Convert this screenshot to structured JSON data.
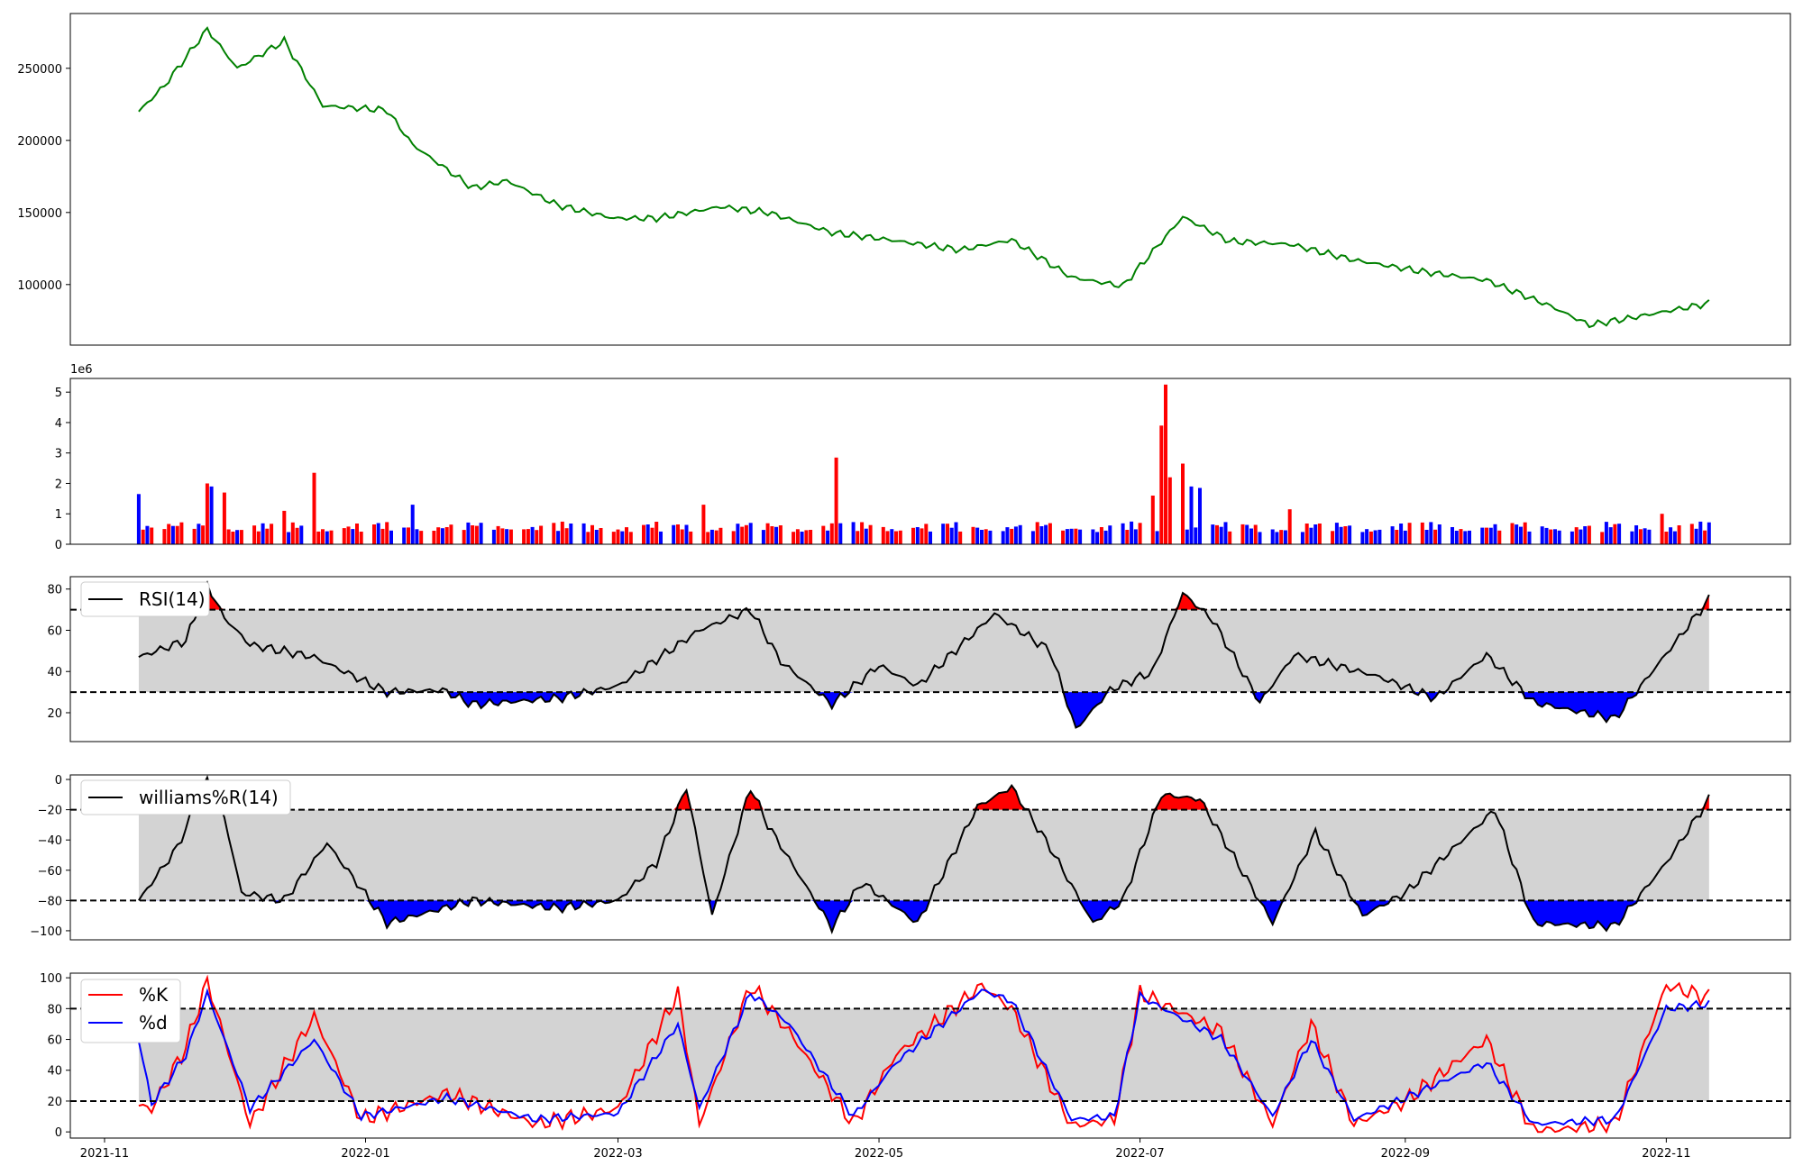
{
  "chart_data": [
    {
      "type": "line",
      "panel": "price",
      "x_dates": [
        "2021-11-09",
        "2021-11-15",
        "2021-11-25",
        "2021-12-02",
        "2021-12-13",
        "2021-12-22",
        "2022-01-06",
        "2022-01-12",
        "2022-01-26",
        "2022-02-03",
        "2022-02-15",
        "2022-02-28",
        "2022-03-10",
        "2022-03-25",
        "2022-04-05",
        "2022-04-20",
        "2022-05-01",
        "2022-05-20",
        "2022-06-01",
        "2022-06-15",
        "2022-06-27",
        "2022-07-11",
        "2022-07-22",
        "2022-08-05",
        "2022-08-20",
        "2022-09-05",
        "2022-09-20",
        "2022-10-05",
        "2022-10-14",
        "2022-10-24",
        "2022-11-11"
      ],
      "values": [
        220000,
        238000,
        277000,
        250000,
        269000,
        224000,
        221000,
        197000,
        167000,
        172000,
        155000,
        146000,
        146000,
        154000,
        150000,
        136000,
        132000,
        124000,
        131000,
        105000,
        99000,
        147000,
        130000,
        128000,
        117000,
        109000,
        103000,
        85000,
        72000,
        77000,
        87000
      ],
      "yticks": [
        100000,
        150000,
        200000,
        250000
      ],
      "ylim": [
        58000,
        288000
      ],
      "color": "#008000"
    },
    {
      "type": "bar",
      "panel": "volume",
      "scale_label": "1e6",
      "x_dates": [
        "2021-11-09",
        "2021-11-11",
        "2021-11-15",
        "2021-11-25",
        "2021-11-26",
        "2021-11-29",
        "2021-12-13",
        "2021-12-20",
        "2022-01-12",
        "2022-02-08",
        "2022-03-21",
        "2022-04-21",
        "2022-06-14",
        "2022-07-04",
        "2022-07-06",
        "2022-07-07",
        "2022-07-08",
        "2022-07-11",
        "2022-07-13",
        "2022-07-15",
        "2022-08-05",
        "2022-10-31"
      ],
      "values": [
        1.65,
        0.6,
        0.5,
        2.0,
        1.9,
        1.7,
        1.1,
        2.35,
        1.3,
        0.5,
        1.3,
        2.85,
        0.5,
        1.6,
        3.9,
        5.25,
        2.2,
        2.65,
        1.9,
        1.85,
        1.15,
        1.0
      ],
      "colors": [
        "blue",
        "blue",
        "red",
        "red",
        "blue",
        "red",
        "red",
        "red",
        "blue",
        "red",
        "red",
        "red",
        "blue",
        "red",
        "red",
        "red",
        "red",
        "red",
        "blue",
        "blue",
        "red",
        "red"
      ],
      "yticks": [
        0,
        1,
        2,
        3,
        4,
        5
      ],
      "ylim": [
        0,
        5.45
      ]
    },
    {
      "type": "line",
      "panel": "rsi",
      "legend": "RSI(14)",
      "x_dates": [
        "2021-11-09",
        "2021-11-20",
        "2021-11-25",
        "2021-11-29",
        "2021-12-05",
        "2021-12-20",
        "2022-01-06",
        "2022-01-19",
        "2022-01-26",
        "2022-02-15",
        "2022-03-01",
        "2022-03-20",
        "2022-04-01",
        "2022-04-08",
        "2022-04-20",
        "2022-05-01",
        "2022-05-10",
        "2022-05-28",
        "2022-06-10",
        "2022-06-16",
        "2022-06-24",
        "2022-07-04",
        "2022-07-11",
        "2022-07-18",
        "2022-07-29",
        "2022-08-06",
        "2022-08-25",
        "2022-09-08",
        "2022-09-20",
        "2022-10-01",
        "2022-10-20",
        "2022-11-11"
      ],
      "values": [
        47,
        55,
        82,
        66,
        53,
        47,
        30,
        31,
        24,
        27,
        33,
        60,
        70,
        45,
        24,
        43,
        33,
        68,
        50,
        12,
        31,
        40,
        78,
        65,
        25,
        48,
        38,
        27,
        48,
        25,
        17,
        75
      ],
      "yticks": [
        20,
        40,
        60,
        80
      ],
      "ylim": [
        6,
        86
      ],
      "upper": 70,
      "lower": 30
    },
    {
      "type": "line",
      "panel": "williams",
      "legend": "williams%R(14)",
      "x_dates": [
        "2021-11-09",
        "2021-11-18",
        "2021-11-25",
        "2021-11-29",
        "2021-12-03",
        "2021-12-13",
        "2021-12-23",
        "2022-01-06",
        "2022-01-26",
        "2022-02-15",
        "2022-03-01",
        "2022-03-10",
        "2022-03-17",
        "2022-03-23",
        "2022-04-01",
        "2022-04-05",
        "2022-04-20",
        "2022-04-27",
        "2022-05-10",
        "2022-05-24",
        "2022-06-01",
        "2022-06-10",
        "2022-06-20",
        "2022-06-27",
        "2022-07-06",
        "2022-07-15",
        "2022-08-01",
        "2022-08-11",
        "2022-08-22",
        "2022-09-01",
        "2022-09-22",
        "2022-10-01",
        "2022-10-20",
        "2022-11-01",
        "2022-11-11"
      ],
      "values": [
        -80,
        -45,
        0,
        -25,
        -75,
        -80,
        -42,
        -95,
        -80,
        -85,
        -80,
        -55,
        -5,
        -90,
        -5,
        -30,
        -98,
        -68,
        -95,
        -18,
        -5,
        -45,
        -95,
        -80,
        -10,
        -13,
        -95,
        -35,
        -90,
        -75,
        -20,
        -95,
        -97,
        -55,
        -13
      ],
      "yticks": [
        0,
        -20,
        -40,
        -60,
        -80,
        -100
      ],
      "ylim": [
        -106,
        3
      ],
      "upper": -20,
      "lower": -80
    },
    {
      "type": "line",
      "panel": "stochastic",
      "legend_k": "%K",
      "legend_d": "%d",
      "x_dates": [
        "2021-11-09",
        "2021-11-12",
        "2021-11-20",
        "2021-11-25",
        "2021-12-05",
        "2021-12-20",
        "2021-12-31",
        "2022-01-20",
        "2022-02-10",
        "2022-03-01",
        "2022-03-15",
        "2022-03-20",
        "2022-04-01",
        "2022-04-10",
        "2022-04-25",
        "2022-05-05",
        "2022-05-25",
        "2022-06-01",
        "2022-06-15",
        "2022-06-25",
        "2022-07-01",
        "2022-07-20",
        "2022-08-01",
        "2022-08-10",
        "2022-08-20",
        "2022-09-01",
        "2022-09-20",
        "2022-10-01",
        "2022-10-20",
        "2022-11-01",
        "2022-11-11"
      ],
      "k_values": [
        17,
        15,
        55,
        98,
        5,
        75,
        8,
        25,
        5,
        15,
        90,
        5,
        95,
        65,
        5,
        50,
        95,
        80,
        4,
        8,
        90,
        65,
        5,
        70,
        5,
        20,
        60,
        0,
        5,
        95,
        87
      ],
      "d_values": [
        60,
        18,
        50,
        90,
        15,
        60,
        10,
        22,
        8,
        12,
        70,
        15,
        90,
        70,
        10,
        45,
        92,
        85,
        8,
        10,
        88,
        60,
        10,
        60,
        8,
        22,
        45,
        5,
        8,
        80,
        83
      ],
      "yticks": [
        0,
        20,
        40,
        60,
        80,
        100
      ],
      "ylim": [
        -4,
        103
      ],
      "upper": 80,
      "lower": 20
    }
  ],
  "x_axis": {
    "start": "2021-10-24",
    "end": "2022-11-30",
    "tick_labels": [
      "2021-11",
      "2022-01",
      "2022-03",
      "2022-05",
      "2022-07",
      "2022-09",
      "2022-11"
    ],
    "tick_dates": [
      "2021-11-01",
      "2022-01-01",
      "2022-03-01",
      "2022-05-01",
      "2022-07-01",
      "2022-09-01",
      "2022-11-01"
    ]
  },
  "colors": {
    "price": "#008000",
    "up": "#ff0000",
    "down": "#0000ff",
    "band": "#d3d3d3",
    "line": "#000000"
  }
}
